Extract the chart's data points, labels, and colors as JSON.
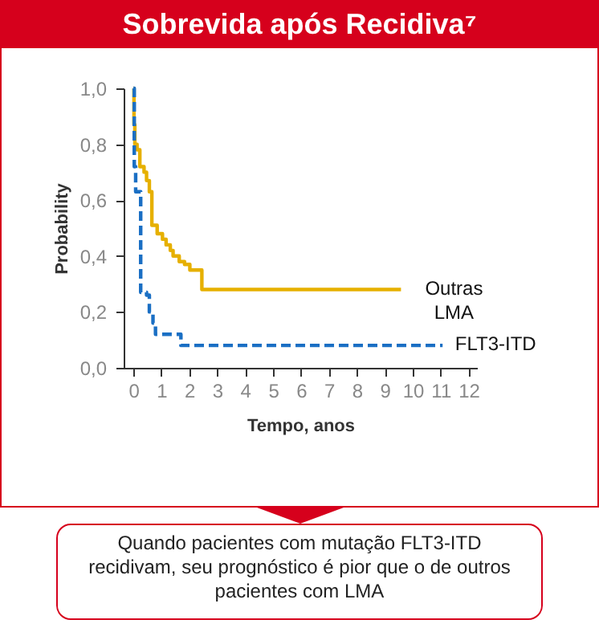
{
  "chart_data": {
    "type": "step",
    "title": "Sobrevida após Recidiva⁷",
    "xlabel": "Tempo, anos",
    "ylabel": "Probability",
    "annotations": [
      "Quando pacientes com mutação FLT3-ITD recidivam, seu prognóstico é pior que o de outros pacientes com LMA"
    ],
    "xlim": [
      -0.35,
      12.3
    ],
    "xticks": [
      0,
      1,
      2,
      3,
      4,
      5,
      6,
      7,
      8,
      9,
      10,
      11,
      12
    ],
    "ylim": [
      0,
      1
    ],
    "yticks": [
      {
        "value": 0,
        "label": "0,0"
      },
      {
        "value": 0.2,
        "label": "0,2"
      },
      {
        "value": 0.4,
        "label": "0,4"
      },
      {
        "value": 0.6,
        "label": "0,6"
      },
      {
        "value": 0.8,
        "label": "0,8"
      },
      {
        "value": 1,
        "label": "1,0"
      }
    ],
    "series": [
      {
        "name": "Outras LMA",
        "color": "#e6b000",
        "line_style": "solid",
        "x": [
          0,
          0.02,
          0.05,
          0.13,
          0.23,
          0.38,
          0.47,
          0.57,
          0.66,
          0.85,
          1.04,
          1.17,
          1.32,
          1.42,
          1.64,
          1.83,
          2.02,
          2.45,
          9.58
        ],
        "values": [
          1.0,
          0.87,
          0.8,
          0.78,
          0.72,
          0.7,
          0.67,
          0.63,
          0.51,
          0.48,
          0.46,
          0.44,
          0.42,
          0.4,
          0.38,
          0.37,
          0.35,
          0.28,
          0.28
        ]
      },
      {
        "name": "FLT3-ITD",
        "color": "#1a6fc4",
        "line_style": "dashed",
        "x": [
          0,
          0.03,
          0.08,
          0.26,
          0.47,
          0.57,
          0.7,
          0.79,
          1.7,
          11.07
        ],
        "values": [
          1.0,
          0.72,
          0.63,
          0.27,
          0.26,
          0.2,
          0.16,
          0.12,
          0.08,
          0.08
        ]
      }
    ]
  }
}
